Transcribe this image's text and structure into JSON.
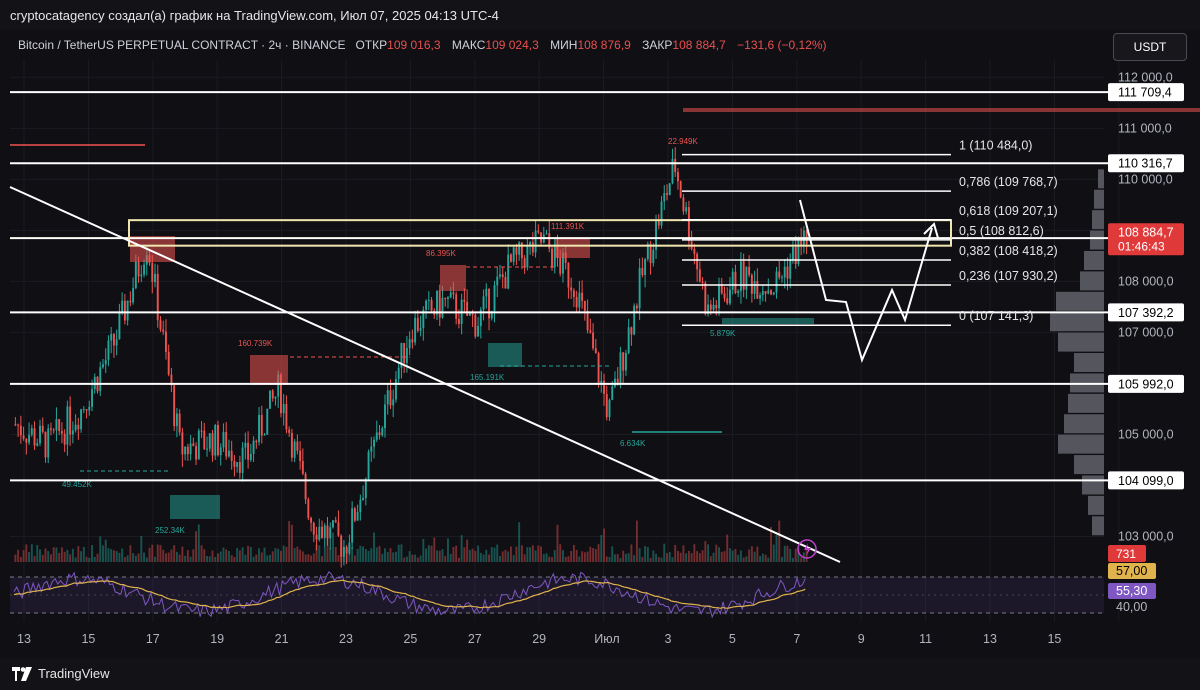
{
  "header": {
    "credit": "cryptocatagency создал(а) график на TradingView.com, Июл 07, 2025 04:13 UTC-4",
    "symbol": "Bitcoin / TetherUS PERPETUAL CONTRACT · 2ч · BINANCE",
    "open_label": "ОТКР",
    "open": "109 016,3",
    "high_label": "МАКС",
    "high": "109 024,3",
    "low_label": "МИН",
    "low": "108 876,9",
    "close_label": "ЗАКР",
    "close": "108 884,7",
    "change": "−131,6 (−0,12%)",
    "currency": "USDT"
  },
  "footer": {
    "brand": "TradingView",
    "logo_icon": "tradingview-logo-icon"
  },
  "colors": {
    "up": "#26a69a",
    "down": "#ef5350",
    "white": "#ffffff",
    "rsi": "#7e57c2",
    "rsi_ma": "#e0b34c"
  },
  "chart_data": {
    "type": "line",
    "price_ylim": [
      102500,
      112300
    ],
    "price_ticks": [
      "112 000,0",
      "111 000,0",
      "110 000,0",
      "109 000,0",
      "108 000,0",
      "107 000,0",
      "105 000,0",
      "103 000,0"
    ],
    "price_tick_values": [
      112000,
      111000,
      110000,
      109000,
      108000,
      107000,
      105000,
      103000
    ],
    "x_labels": [
      "13",
      "15",
      "17",
      "19",
      "21",
      "23",
      "25",
      "27",
      "29",
      "Июл",
      "3",
      "5",
      "7",
      "9",
      "11",
      "13",
      "15"
    ],
    "horizontal_levels": [
      {
        "value": 111709.4,
        "label": "111 709,4"
      },
      {
        "value": 110316.7,
        "label": "110 316,7"
      },
      {
        "value": 108847.6,
        "label": "108 847,6"
      },
      {
        "value": 107392.2,
        "label": "107 392,2"
      },
      {
        "value": 105992.0,
        "label": "105 992,0"
      },
      {
        "value": 104099.0,
        "label": "104 099,0"
      }
    ],
    "current_price": {
      "value": 108884.7,
      "label": "108 884,7",
      "countdown": "01:46:43"
    },
    "fibonacci": [
      {
        "ratio": "1",
        "value": 110484.0,
        "label": "1 (110 484,0)"
      },
      {
        "ratio": "0,786",
        "value": 109768.7,
        "label": "0,786 (109 768,7)"
      },
      {
        "ratio": "0,618",
        "value": 109207.1,
        "label": "0,618 (109 207,1)"
      },
      {
        "ratio": "0,5",
        "value": 108812.6,
        "label": "0,5 (108 812,6)"
      },
      {
        "ratio": "0,382",
        "value": 108418.2,
        "label": "0,382 (108 418,2)"
      },
      {
        "ratio": "0,236",
        "value": 107930.2,
        "label": "0,236 (107 930,2)"
      },
      {
        "ratio": "0",
        "value": 107141.3,
        "label": "0 (107 141,3)"
      }
    ],
    "volume_annotations": [
      "22.949K",
      "111.391K",
      "86.395K",
      "160.739K",
      "165.191K",
      "5.879K",
      "6.634K",
      "49.452K",
      "252.34K"
    ],
    "price_series": {
      "name": "",
      "x": [
        "13",
        "14",
        "15",
        "16",
        "17",
        "18",
        "19",
        "20",
        "21",
        "22",
        "23",
        "24",
        "25",
        "26",
        "27",
        "28",
        "29",
        "30",
        "Июл",
        "2",
        "3",
        "4",
        "5",
        "6",
        "7"
      ],
      "values": [
        105200,
        104800,
        105500,
        106800,
        108800,
        104700,
        104900,
        104500,
        105900,
        103300,
        102800,
        105000,
        107100,
        107600,
        107200,
        108300,
        108800,
        107900,
        105400,
        108100,
        110300,
        107400,
        108100,
        107900,
        108900
      ]
    },
    "volume_label": "731",
    "rsi": {
      "ticks": [
        "57,00",
        "55,30",
        "40,00"
      ],
      "levels": [
        70,
        30
      ],
      "ylim": [
        20,
        80
      ]
    }
  }
}
